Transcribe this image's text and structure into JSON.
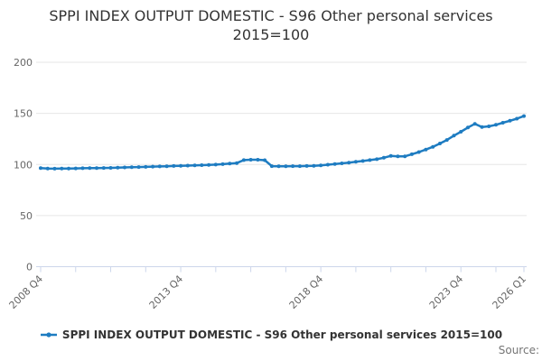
{
  "title": "SPPI INDEX OUTPUT DOMESTIC - S96 Other personal services 2015=100",
  "source_label": "Source:",
  "legend": {
    "label": "SPPI INDEX OUTPUT DOMESTIC - S96 Other personal services 2015=100"
  },
  "colors": {
    "series": "#1e7cc1",
    "grid": "#e6e6e6",
    "axis": "#ccd6eb",
    "axis_text": "#666666",
    "title_text": "#333333",
    "legend_text": "#333333",
    "source_text": "#757575"
  },
  "chart_data": {
    "type": "line",
    "title": "SPPI INDEX OUTPUT DOMESTIC - S96 Other personal services 2015=100",
    "xlabel": "",
    "ylabel": "",
    "x_first": "2008 Q4",
    "x_last": "2026 Q1",
    "frequency": "quarterly",
    "grid": "horizontal",
    "legend_position": "bottom",
    "ylim": [
      0,
      215
    ],
    "yticks": [
      0,
      50,
      100,
      150,
      200
    ],
    "x_major_ticks": [
      {
        "index": 0,
        "label": "2008 Q4"
      },
      {
        "index": 20,
        "label": "2013 Q4"
      },
      {
        "index": 40,
        "label": "2018 Q4"
      },
      {
        "index": 60,
        "label": "2023 Q4"
      },
      {
        "index": 69,
        "label": "2026 Q1"
      }
    ],
    "x_minor_tick_step": 5,
    "series": [
      {
        "name": "SPPI INDEX OUTPUT DOMESTIC - S96 Other personal services 2015=100",
        "values": [
          96.4,
          96.0,
          95.9,
          96.0,
          96.1,
          96.2,
          96.3,
          96.4,
          96.5,
          96.6,
          96.7,
          96.9,
          97.1,
          97.3,
          97.5,
          97.7,
          97.9,
          98.1,
          98.3,
          98.5,
          98.7,
          98.9,
          99.1,
          99.3,
          99.6,
          99.9,
          100.3,
          100.8,
          101.4,
          104.3,
          104.6,
          104.6,
          104.2,
          98.4,
          98.3,
          98.3,
          98.4,
          98.4,
          98.5,
          98.7,
          99.2,
          99.8,
          100.4,
          101.1,
          101.8,
          102.6,
          103.4,
          104.3,
          105.2,
          106.6,
          108.4,
          107.9,
          108.0,
          110.0,
          112.1,
          114.6,
          117.3,
          120.5,
          124.0,
          128.2,
          132.0,
          136.2,
          139.8,
          136.6,
          137.3,
          138.8,
          140.8,
          142.8,
          144.8,
          147.4
        ]
      }
    ]
  }
}
